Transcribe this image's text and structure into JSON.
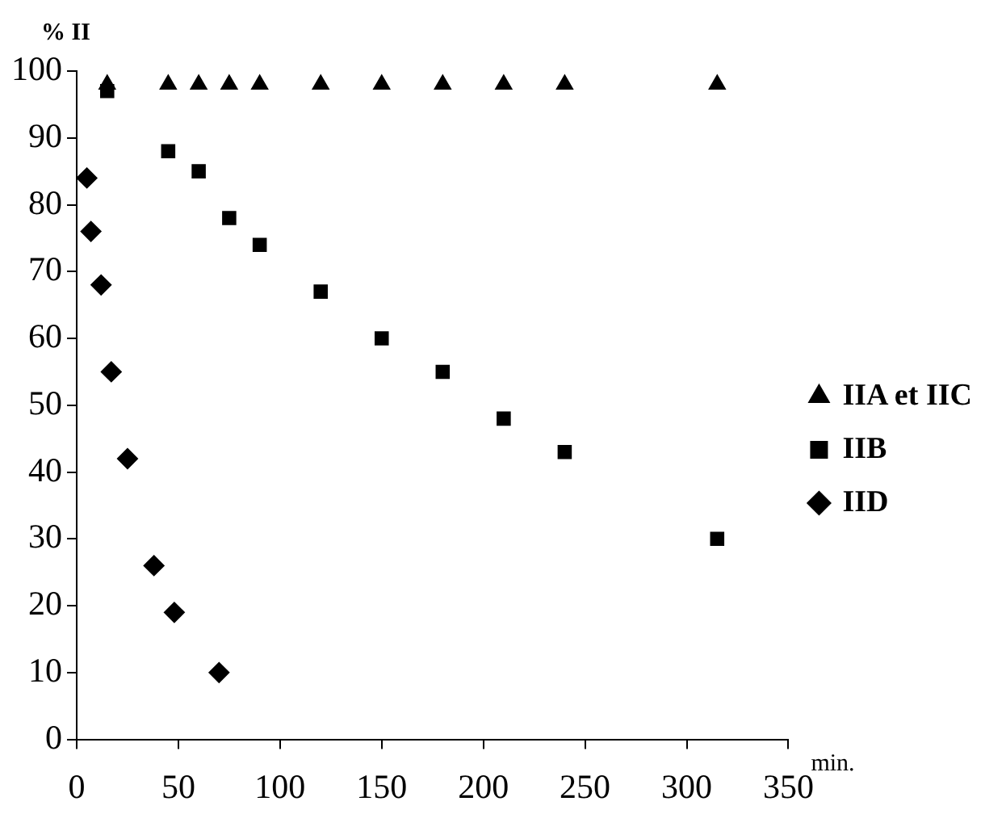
{
  "chart_data": {
    "type": "scatter",
    "xlabel": "min.",
    "ylabel": "% II",
    "xlim": [
      0,
      350
    ],
    "xticks": [
      0,
      50,
      100,
      150,
      200,
      250,
      300,
      350
    ],
    "ylim": [
      0,
      100
    ],
    "yticks": [
      0,
      10,
      20,
      30,
      40,
      50,
      60,
      70,
      80,
      90,
      100
    ],
    "grid": false,
    "legend": "right",
    "series": [
      {
        "name": "IIA et IIC",
        "color": "#000000",
        "marker": "triangle",
        "x": [
          15,
          45,
          60,
          75,
          90,
          120,
          150,
          180,
          210,
          240,
          315
        ],
        "values": [
          98,
          98,
          98,
          98,
          98,
          98,
          98,
          98,
          98,
          98,
          98
        ]
      },
      {
        "name": "IIB",
        "color": "#000000",
        "marker": "square",
        "x": [
          15,
          45,
          60,
          75,
          90,
          120,
          150,
          180,
          210,
          240,
          315
        ],
        "values": [
          97,
          88,
          85,
          78,
          74,
          67,
          60,
          55,
          48,
          43,
          30
        ]
      },
      {
        "name": "IID",
        "color": "#000000",
        "marker": "diamond",
        "x": [
          5,
          7,
          12,
          17,
          25,
          38,
          48,
          70
        ],
        "values": [
          84,
          76,
          68,
          55,
          42,
          26,
          19,
          10
        ]
      }
    ]
  }
}
